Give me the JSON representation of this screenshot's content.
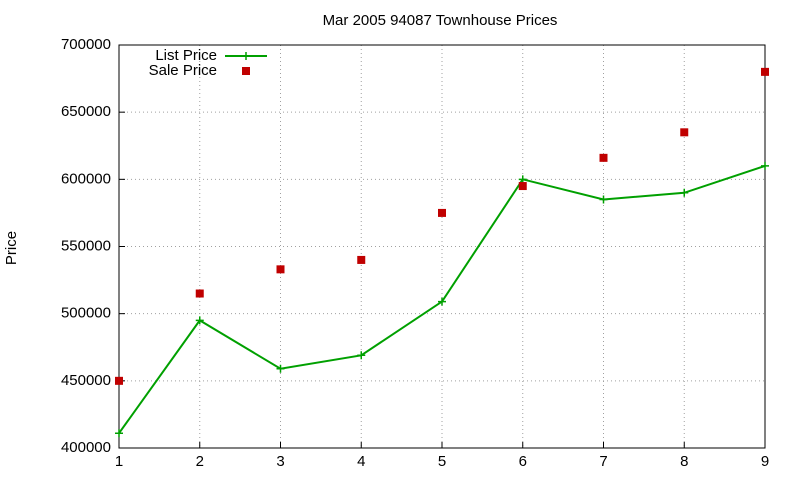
{
  "chart_data": {
    "type": "line",
    "title": "Mar 2005 94087 Townhouse Prices",
    "y_label": "Price",
    "x": [
      1,
      2,
      3,
      4,
      5,
      6,
      7,
      8,
      9
    ],
    "series": [
      {
        "name": "List Price",
        "color": "#00a000",
        "style": "linespoints",
        "values": [
          411000,
          495000,
          459000,
          469000,
          509000,
          600000,
          585000,
          590000,
          610000
        ]
      },
      {
        "name": "Sale Price",
        "color": "#c00000",
        "style": "points",
        "values": [
          450000,
          515000,
          533000,
          540000,
          575000,
          595000,
          616000,
          635000,
          680000
        ]
      }
    ],
    "xlim": [
      1,
      9
    ],
    "xticks": [
      1,
      2,
      3,
      4,
      5,
      6,
      7,
      8,
      9
    ],
    "ylim": [
      400000,
      700000
    ],
    "yticks": [
      400000,
      450000,
      500000,
      550000,
      600000,
      650000,
      700000
    ],
    "grid": true,
    "legend": "top-left"
  }
}
